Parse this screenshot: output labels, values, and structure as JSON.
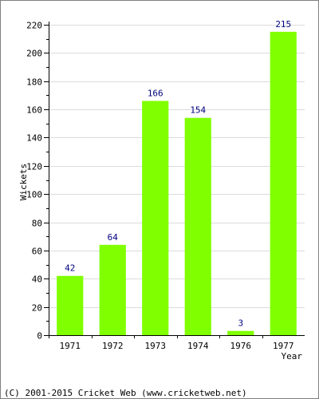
{
  "chart_data": {
    "type": "bar",
    "categories": [
      "1971",
      "1972",
      "1973",
      "1974",
      "1976",
      "1977"
    ],
    "values": [
      42,
      64,
      166,
      154,
      3,
      215
    ],
    "data_labels": [
      "42",
      "64",
      "166",
      "154",
      "3",
      "215"
    ],
    "xlabel": "Year",
    "ylabel": "Wickets",
    "ylim": [
      0,
      220
    ],
    "y_ticks": [
      "0",
      "20",
      "40",
      "60",
      "80",
      "100",
      "120",
      "140",
      "160",
      "180",
      "200",
      "220"
    ],
    "grid": true,
    "bar_color": "#80ff00",
    "label_color": "#000080"
  },
  "footer": {
    "copyright": "(C) 2001-2015 Cricket Web (www.cricketweb.net)"
  }
}
